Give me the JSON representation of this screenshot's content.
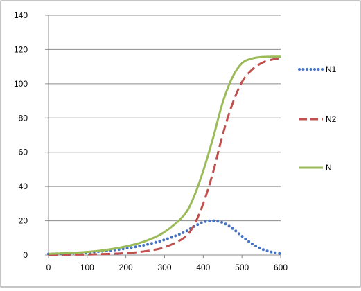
{
  "chart_data": {
    "type": "line",
    "title": "",
    "xlabel": "",
    "ylabel": "",
    "xlim": [
      0,
      600
    ],
    "ylim": [
      0,
      140
    ],
    "x_ticks": [
      "0",
      "100",
      "200",
      "300",
      "400",
      "500",
      "600"
    ],
    "y_ticks": [
      "0",
      "20",
      "40",
      "60",
      "80",
      "100",
      "120",
      "140"
    ],
    "grid": "horizontal",
    "legend_position": "right",
    "x": [
      0,
      50,
      100,
      150,
      200,
      250,
      300,
      350,
      375,
      400,
      425,
      450,
      475,
      500,
      525,
      550,
      575,
      600
    ],
    "series": [
      {
        "name": "N1",
        "color": "#4472C4",
        "style": "dotted",
        "values": [
          0.6,
          0.9,
          1.5,
          2.4,
          3.8,
          5.9,
          8.9,
          13.2,
          16.5,
          19.2,
          20,
          18.9,
          15.6,
          11,
          6.7,
          3.6,
          1.8,
          0.8
        ]
      },
      {
        "name": "N2",
        "color": "#C0504D",
        "style": "dashed",
        "values": [
          0.1,
          0.2,
          0.3,
          0.6,
          1.1,
          2.2,
          4.5,
          10,
          17,
          30,
          48,
          70,
          88,
          101,
          108,
          112,
          114,
          115
        ]
      },
      {
        "name": "N",
        "color": "#9BBB59",
        "style": "solid",
        "values": [
          0.7,
          1.1,
          1.8,
          3,
          5,
          8.1,
          13.4,
          23.2,
          33.5,
          49.2,
          68,
          88.9,
          103.6,
          112,
          114.7,
          115.6,
          115.8,
          115.8
        ]
      }
    ]
  }
}
